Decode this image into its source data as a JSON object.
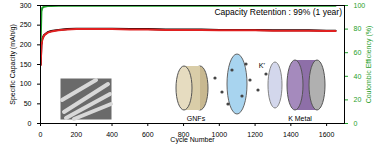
{
  "chart_data": {
    "type": "line",
    "x_label": "Cycle Number",
    "y_label": "Specific Capacity (mAh/g)",
    "y2_label": "Coulombic Efficiency (%)",
    "x": [
      1,
      5,
      10,
      20,
      40,
      60,
      100,
      150,
      200,
      300,
      400,
      500,
      600,
      700,
      800,
      900,
      1000,
      1100,
      1200,
      1300,
      1400,
      1500,
      1600,
      1650
    ],
    "series": [
      {
        "color": "#000000",
        "values": [
          150,
          200,
          215,
          225,
          232,
          235,
          238,
          240,
          241,
          241,
          241,
          240,
          240,
          239,
          239,
          239,
          238,
          238,
          238,
          237,
          237,
          237,
          236,
          236
        ]
      },
      {
        "color": "#e02020",
        "values": [
          148,
          198,
          213,
          224,
          231,
          234,
          237,
          239,
          240,
          240,
          240,
          239,
          239,
          238,
          238,
          238,
          237,
          237,
          237,
          236,
          236,
          236,
          235,
          235
        ]
      },
      {
        "color": "#1f9e2a",
        "axis": "y2",
        "values": [
          70,
          95,
          98,
          99,
          99.5,
          99.6,
          99.7,
          99.7,
          99.7,
          99.7,
          99.7,
          99.7,
          99.7,
          99.7,
          99.7,
          99.7,
          99.7,
          99.7,
          99.7,
          99.7,
          99.7,
          99.7,
          99.7,
          99.7
        ]
      }
    ],
    "xlim": [
      0,
      1700
    ],
    "xticks": [
      0,
      200,
      400,
      600,
      800,
      1000,
      1200,
      1400,
      1600
    ],
    "ylim": [
      0,
      300
    ],
    "yticks": [
      0,
      50,
      100,
      150,
      200,
      250,
      300
    ],
    "y2lim": [
      0,
      100
    ],
    "y2ticks": [
      0,
      20,
      40,
      60,
      80,
      100
    ],
    "annotations": [
      {
        "text": "Capacity Retention : 99% (1 year)"
      },
      {
        "text": "GNFs"
      },
      {
        "text": "K⁺"
      },
      {
        "text": "K Metal"
      }
    ]
  }
}
